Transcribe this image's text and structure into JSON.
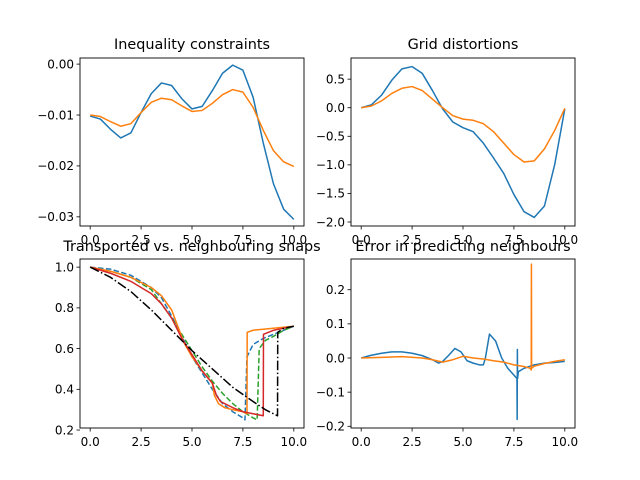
{
  "colors": {
    "blue": "#1f77b4",
    "orange": "#ff7f0e",
    "green": "#2ca02c",
    "red": "#d62728",
    "black": "#000000"
  },
  "chart_data": [
    {
      "type": "line",
      "title": "Inequality constraints",
      "xlabel": "",
      "ylabel": "",
      "xlim": [
        -0.5,
        10.5
      ],
      "ylim": [
        -0.0318,
        0.0012
      ],
      "xticks": [
        0.0,
        2.5,
        5.0,
        7.5,
        10.0
      ],
      "xtick_labels": [
        "0.0",
        "2.5",
        "5.0",
        "7.5",
        "10.0"
      ],
      "yticks": [
        0.0,
        -0.01,
        -0.02,
        -0.03
      ],
      "ytick_labels": [
        "0.00",
        "−0.01",
        "−0.02",
        "−0.03"
      ],
      "grid": false,
      "series": [
        {
          "color": "#1f77b4",
          "dash": "solid",
          "x": [
            0,
            0.5,
            1,
            1.5,
            2,
            2.5,
            3,
            3.5,
            4,
            4.5,
            5,
            5.5,
            6,
            6.5,
            7,
            7.5,
            8,
            8.5,
            9,
            9.5,
            10
          ],
          "y": [
            -0.0102,
            -0.0108,
            -0.0128,
            -0.0145,
            -0.0135,
            -0.0095,
            -0.0058,
            -0.0037,
            -0.0042,
            -0.0068,
            -0.0088,
            -0.0083,
            -0.0052,
            -0.0018,
            -0.0002,
            -0.0012,
            -0.0065,
            -0.0155,
            -0.0235,
            -0.0285,
            -0.0305
          ]
        },
        {
          "color": "#ff7f0e",
          "dash": "solid",
          "x": [
            0,
            0.5,
            1,
            1.5,
            2,
            2.5,
            3,
            3.5,
            4,
            4.5,
            5,
            5.5,
            6,
            6.5,
            7,
            7.5,
            8,
            8.5,
            9,
            9.5,
            10
          ],
          "y": [
            -0.01,
            -0.0103,
            -0.0113,
            -0.0122,
            -0.0117,
            -0.0095,
            -0.0075,
            -0.0067,
            -0.007,
            -0.0082,
            -0.0093,
            -0.0091,
            -0.0077,
            -0.006,
            -0.005,
            -0.0055,
            -0.0085,
            -0.013,
            -0.017,
            -0.0192,
            -0.0201
          ]
        }
      ]
    },
    {
      "type": "line",
      "title": "Grid distortions",
      "xlabel": "",
      "ylabel": "",
      "xlim": [
        -0.5,
        10.5
      ],
      "ylim": [
        -2.07,
        0.87
      ],
      "xticks": [
        0.0,
        2.5,
        5.0,
        7.5,
        10.0
      ],
      "xtick_labels": [
        "0.0",
        "2.5",
        "5.0",
        "7.5",
        "10.0"
      ],
      "yticks": [
        0.5,
        0.0,
        -0.5,
        -1.0,
        -1.5,
        -2.0
      ],
      "ytick_labels": [
        "0.5",
        "0.0",
        "−0.5",
        "−1.0",
        "−1.5",
        "−2.0"
      ],
      "grid": false,
      "series": [
        {
          "color": "#1f77b4",
          "dash": "solid",
          "x": [
            0,
            0.5,
            1,
            1.5,
            2,
            2.5,
            3,
            3.5,
            4,
            4.5,
            5,
            5.5,
            6,
            6.5,
            7,
            7.5,
            8,
            8.5,
            9,
            9.5,
            10
          ],
          "y": [
            0.0,
            0.05,
            0.22,
            0.48,
            0.68,
            0.72,
            0.6,
            0.3,
            -0.02,
            -0.25,
            -0.35,
            -0.42,
            -0.62,
            -0.88,
            -1.15,
            -1.52,
            -1.82,
            -1.92,
            -1.72,
            -1.0,
            -0.02
          ]
        },
        {
          "color": "#ff7f0e",
          "dash": "solid",
          "x": [
            0,
            0.5,
            1,
            1.5,
            2,
            2.5,
            3,
            3.5,
            4,
            4.5,
            5,
            5.5,
            6,
            6.5,
            7,
            7.5,
            8,
            8.5,
            9,
            9.5,
            10
          ],
          "y": [
            0.0,
            0.03,
            0.12,
            0.25,
            0.34,
            0.37,
            0.3,
            0.15,
            0.0,
            -0.14,
            -0.2,
            -0.22,
            -0.28,
            -0.42,
            -0.62,
            -0.82,
            -0.95,
            -0.93,
            -0.72,
            -0.4,
            -0.01
          ]
        }
      ]
    },
    {
      "type": "line",
      "title": "Transported vs. neighbouring snaps",
      "xlabel": "",
      "ylabel": "",
      "xlim": [
        -0.5,
        10.5
      ],
      "ylim": [
        0.21,
        1.04
      ],
      "xticks": [
        0.0,
        2.5,
        5.0,
        7.5,
        10.0
      ],
      "xtick_labels": [
        "0.0",
        "2.5",
        "5.0",
        "7.5",
        "10.0"
      ],
      "yticks": [
        1.0,
        0.8,
        0.6,
        0.4,
        0.2
      ],
      "ytick_labels": [
        "1.0",
        "0.8",
        "0.6",
        "0.4",
        "0.2"
      ],
      "grid": false,
      "series": [
        {
          "color": "#1f77b4",
          "dash": "dashed",
          "x": [
            0,
            1,
            2,
            3,
            3.5,
            4,
            4.5,
            5,
            5.5,
            6,
            6.5,
            7,
            7.5,
            7.6,
            7.7,
            8,
            8.5,
            9,
            9.5,
            10
          ],
          "y": [
            1.0,
            0.99,
            0.96,
            0.9,
            0.85,
            0.76,
            0.66,
            0.56,
            0.48,
            0.4,
            0.33,
            0.29,
            0.26,
            0.25,
            0.56,
            0.62,
            0.65,
            0.67,
            0.69,
            0.71
          ]
        },
        {
          "color": "#2ca02c",
          "dash": "dashed",
          "x": [
            0,
            1,
            2,
            3,
            4,
            4.5,
            5,
            5.5,
            6,
            6.5,
            7,
            7.5,
            8,
            8.2,
            8.3,
            8.6,
            9,
            9.5,
            10
          ],
          "y": [
            1.0,
            0.98,
            0.95,
            0.89,
            0.75,
            0.67,
            0.59,
            0.51,
            0.44,
            0.38,
            0.33,
            0.29,
            0.26,
            0.25,
            0.6,
            0.64,
            0.66,
            0.69,
            0.71
          ]
        },
        {
          "color": "#ff7f0e",
          "dash": "solid",
          "x": [
            0,
            1,
            2,
            3,
            3.5,
            4,
            4.3,
            4.6,
            5,
            5.5,
            6,
            6.1,
            6.3,
            6.6,
            7,
            7.5,
            7.7,
            7.71,
            8,
            9,
            10
          ],
          "y": [
            1.0,
            0.98,
            0.95,
            0.9,
            0.86,
            0.79,
            0.71,
            0.63,
            0.56,
            0.49,
            0.43,
            0.37,
            0.33,
            0.31,
            0.3,
            0.29,
            0.28,
            0.68,
            0.69,
            0.7,
            0.71
          ]
        },
        {
          "color": "#d62728",
          "dash": "solid",
          "x": [
            0,
            1,
            2,
            3,
            3.5,
            4,
            4.5,
            5,
            5.5,
            6,
            6.2,
            6.4,
            7,
            7.5,
            8,
            8.5,
            8.51,
            9,
            10
          ],
          "y": [
            1.0,
            0.97,
            0.93,
            0.87,
            0.82,
            0.75,
            0.65,
            0.57,
            0.49,
            0.43,
            0.37,
            0.34,
            0.31,
            0.29,
            0.28,
            0.27,
            0.67,
            0.69,
            0.71
          ]
        },
        {
          "color": "#000000",
          "dash": "dashdot",
          "x": [
            0,
            1,
            2,
            3,
            4,
            5,
            6,
            7,
            8,
            8.6,
            9,
            9.2,
            9.21,
            9.5,
            10
          ],
          "y": [
            1.0,
            0.95,
            0.88,
            0.79,
            0.69,
            0.59,
            0.5,
            0.41,
            0.34,
            0.3,
            0.28,
            0.27,
            0.68,
            0.7,
            0.71
          ]
        }
      ]
    },
    {
      "type": "line",
      "title": "Error in predicting neighbours",
      "xlabel": "",
      "ylabel": "",
      "xlim": [
        -0.5,
        10.5
      ],
      "ylim": [
        -0.205,
        0.29
      ],
      "xticks": [
        0.0,
        2.5,
        5.0,
        7.5,
        10.0
      ],
      "xtick_labels": [
        "0.0",
        "2.5",
        "5.0",
        "7.5",
        "10.0"
      ],
      "yticks": [
        0.2,
        0.1,
        0.0,
        -0.1,
        -0.2
      ],
      "ytick_labels": [
        "0.2",
        "0.1",
        "0.0",
        "−0.1",
        "−0.2"
      ],
      "grid": false,
      "series": [
        {
          "color": "#1f77b4",
          "dash": "solid",
          "x": [
            0,
            0.5,
            1,
            1.5,
            2,
            2.5,
            3,
            3.5,
            3.8,
            4,
            4.3,
            4.6,
            4.9,
            5.2,
            5.5,
            5.8,
            6.0,
            6.1,
            6.3,
            6.6,
            6.9,
            7.2,
            7.5,
            7.65,
            7.66,
            7.67,
            7.68,
            7.72,
            8,
            8.5,
            9,
            9.5,
            10
          ],
          "y": [
            0.0,
            0.008,
            0.014,
            0.018,
            0.018,
            0.014,
            0.007,
            -0.005,
            -0.015,
            -0.01,
            0.008,
            0.028,
            0.018,
            -0.008,
            -0.015,
            -0.02,
            -0.02,
            0.0,
            0.07,
            0.05,
            0.0,
            -0.03,
            -0.05,
            -0.06,
            -0.18,
            0.025,
            -0.06,
            -0.04,
            -0.03,
            -0.02,
            -0.015,
            -0.013,
            -0.01
          ]
        },
        {
          "color": "#ff7f0e",
          "dash": "solid",
          "x": [
            0,
            1,
            2,
            3,
            3.5,
            4,
            4.5,
            5,
            5.5,
            6,
            6.5,
            7,
            7.5,
            8,
            8.3,
            8.35,
            8.36,
            8.37,
            8.5,
            9,
            9.5,
            10
          ],
          "y": [
            0.0,
            0.002,
            0.004,
            0.0,
            -0.005,
            -0.012,
            -0.005,
            0.005,
            0.0,
            -0.003,
            -0.008,
            -0.012,
            -0.02,
            -0.025,
            -0.03,
            -0.035,
            0.275,
            -0.03,
            -0.024,
            -0.016,
            -0.01,
            -0.005
          ]
        }
      ]
    }
  ]
}
